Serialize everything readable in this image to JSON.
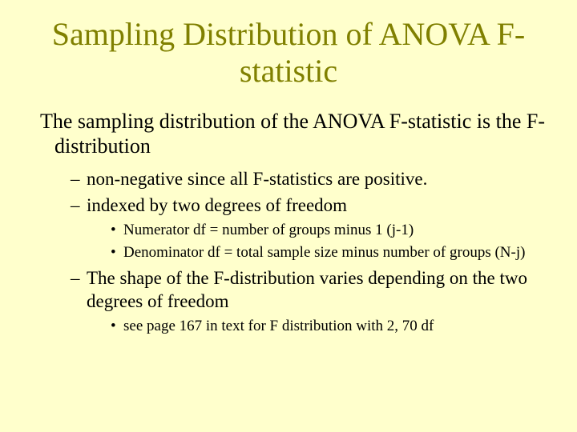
{
  "colors": {
    "background": "#ffffcc",
    "title_color": "#808000",
    "text_color": "#000000"
  },
  "typography": {
    "font_family": "Times New Roman",
    "title_fontsize": 40,
    "intro_fontsize": 26,
    "level1_fontsize": 23,
    "level2_fontsize": 19
  },
  "title": "Sampling Distribution of ANOVA F-statistic",
  "intro": "The sampling distribution of the ANOVA F-statistic is the F-distribution",
  "bullets": {
    "item0": "non-negative since all F-statistics are positive.",
    "item1": "indexed by two degrees of freedom",
    "item1_sub0": "Numerator df = number of groups minus 1 (j-1)",
    "item1_sub1": "Denominator df = total sample size minus number of groups (N-j)",
    "item2": "The shape of the F-distribution varies depending on the two degrees of freedom",
    "item2_sub0": "see page 167 in text for F distribution with 2, 70 df"
  }
}
